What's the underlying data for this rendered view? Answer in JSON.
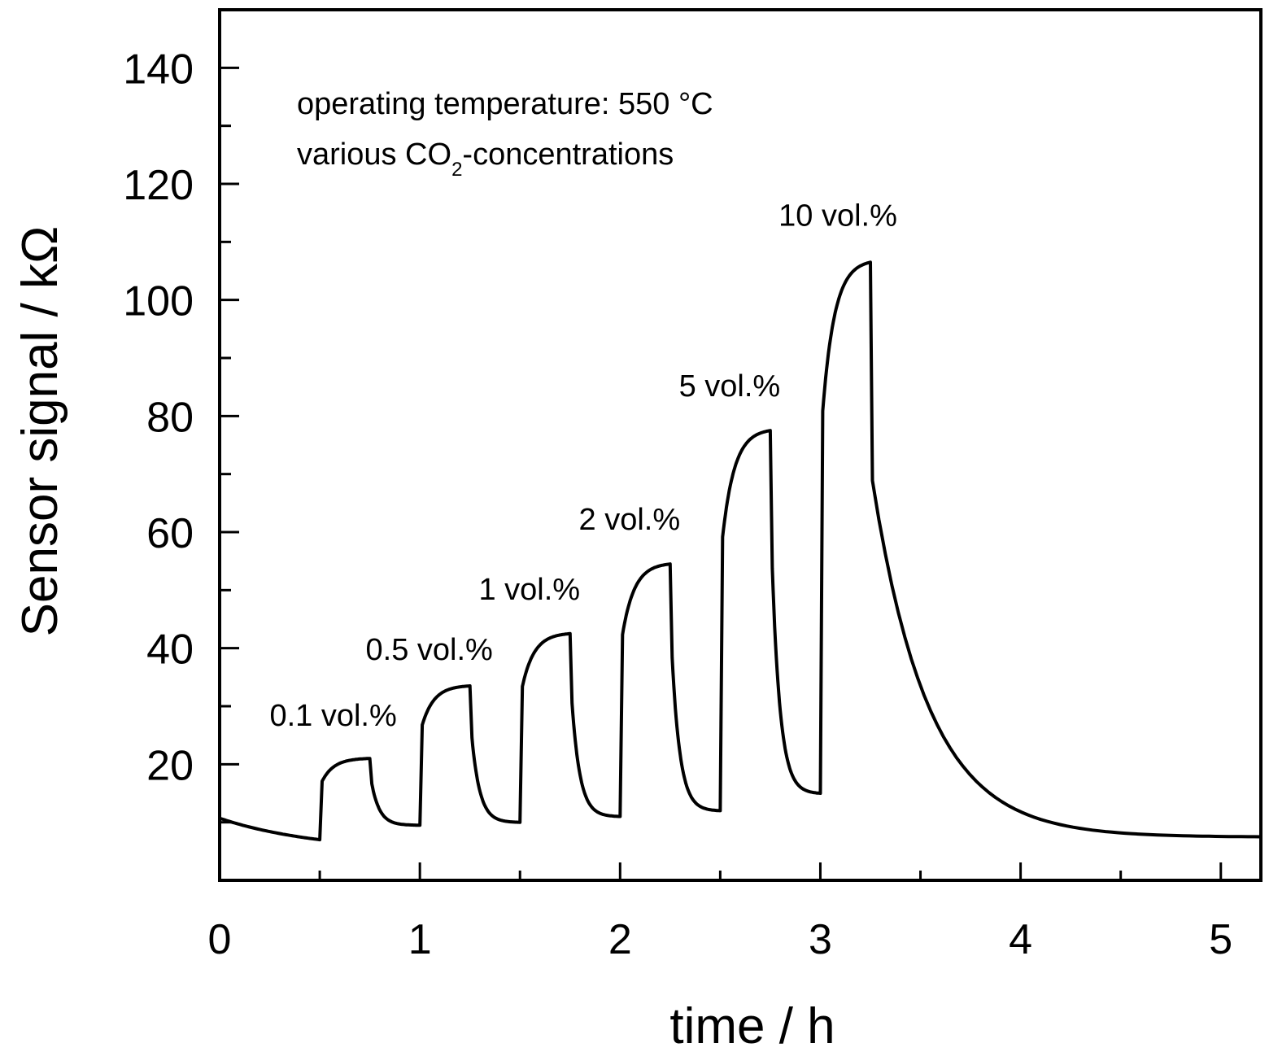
{
  "chart_data": {
    "type": "line",
    "xlabel": "time / h",
    "ylabel": "Sensor signal / kΩ",
    "xlim": [
      0,
      5.2
    ],
    "ylim": [
      0,
      150
    ],
    "xticks": [
      0,
      1,
      2,
      3,
      4,
      5
    ],
    "xtick_labels": [
      "0",
      "1",
      "2",
      "3",
      "4",
      "5"
    ],
    "yticks": [
      20,
      40,
      60,
      80,
      100,
      120,
      140
    ],
    "ytick_labels": [
      "20",
      "40",
      "60",
      "80",
      "100",
      "120",
      "140"
    ],
    "annotation_line1": "operating temperature: 550 °C",
    "annotation_line2_prefix": "various CO",
    "annotation_line2_sub": "2",
    "annotation_line2_suffix": "-concentrations",
    "grid": false,
    "baseline_start": 10.7,
    "segments": [
      {
        "label": "0.1 vol.%",
        "on": 0.5,
        "off": 0.75,
        "base": 7.0,
        "peak": 21.0,
        "off_end": 9.5
      },
      {
        "label": "0.5 vol.%",
        "on": 1.0,
        "off": 1.25,
        "base": 9.5,
        "peak": 33.5,
        "off_end": 10.0
      },
      {
        "label": "1 vol.%",
        "on": 1.5,
        "off": 1.75,
        "base": 10.0,
        "peak": 42.5,
        "off_end": 11.0
      },
      {
        "label": "2 vol.%",
        "on": 2.0,
        "off": 2.25,
        "base": 11.0,
        "peak": 54.5,
        "off_end": 12.0
      },
      {
        "label": "5 vol.%",
        "on": 2.5,
        "off": 2.75,
        "base": 12.0,
        "peak": 77.5,
        "off_end": 15.0
      },
      {
        "label": "10 vol.%",
        "on": 3.0,
        "off": 3.25,
        "base": 15.0,
        "peak": 106.5,
        "off_end": 7.5
      }
    ],
    "end_time": 5.2
  }
}
